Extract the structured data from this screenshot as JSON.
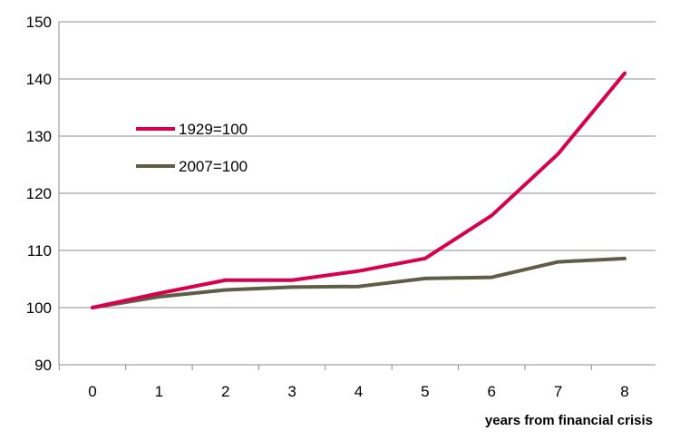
{
  "chart_data": {
    "type": "line",
    "x": [
      0,
      1,
      2,
      3,
      4,
      5,
      6,
      7,
      8
    ],
    "series": [
      {
        "name": "1929=100",
        "color": "#d6004f",
        "values": [
          100,
          102.5,
          104.8,
          104.8,
          106.4,
          108.6,
          116.1,
          126.9,
          141
        ]
      },
      {
        "name": "2007=100",
        "color": "#5e5e48",
        "values": [
          100,
          101.9,
          103.1,
          103.6,
          103.7,
          105.1,
          105.3,
          108,
          108.6
        ]
      }
    ],
    "xlabel": "years from financial crisis",
    "ylabel": "",
    "ylim": [
      90,
      150
    ],
    "yticks": [
      90,
      100,
      110,
      120,
      130,
      140,
      150
    ],
    "xticks": [
      0,
      1,
      2,
      3,
      4,
      5,
      6,
      7,
      8
    ],
    "grid": true,
    "legend_position": "upper-left inside plot"
  }
}
